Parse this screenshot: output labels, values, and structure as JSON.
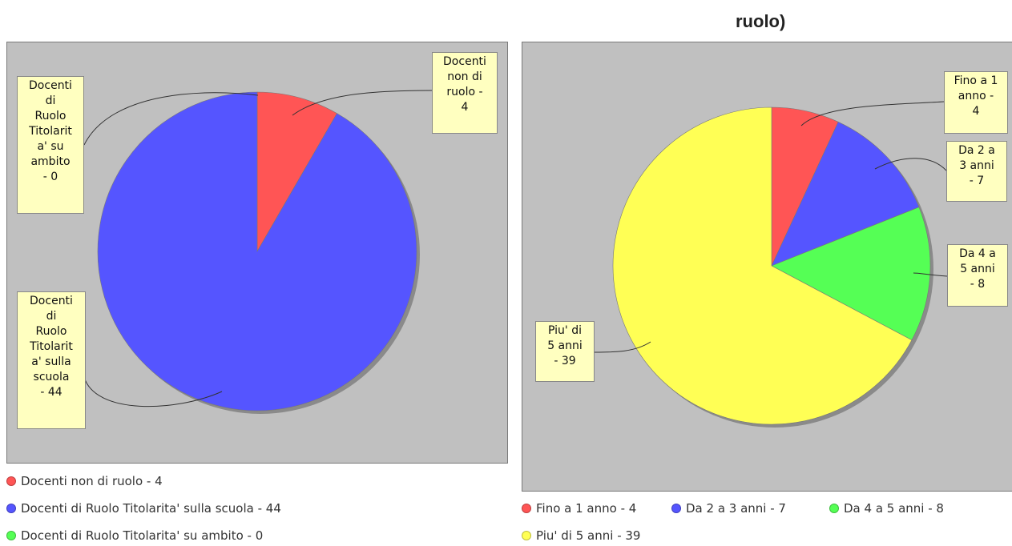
{
  "page": {
    "title": "ruolo)"
  },
  "chart_data": [
    {
      "type": "pie",
      "title": "",
      "series": [
        {
          "name": "Docenti non di ruolo",
          "value": 4,
          "color": "#ff5555",
          "callout": "Docenti\nnon di\nruolo -\n4",
          "legend": "Docenti non di ruolo - 4"
        },
        {
          "name": "Docenti di Ruolo Titolarita' sulla scuola",
          "value": 44,
          "color": "#5555ff",
          "callout": "Docenti\ndi\nRuolo\nTitolarit\na' sulla\nscuola\n- 44",
          "legend": "Docenti di Ruolo Titolarita' sulla scuola - 44"
        },
        {
          "name": "Docenti di Ruolo Titolarita' su ambito",
          "value": 0,
          "color": "#55ff55",
          "callout": "Docenti\ndi\nRuolo\nTitolarit\na' su\nambito\n- 0",
          "legend": "Docenti di Ruolo Titolarita' su ambito - 0"
        }
      ]
    },
    {
      "type": "pie",
      "title": "ruolo)",
      "series": [
        {
          "name": "Fino a 1 anno",
          "value": 4,
          "color": "#ff5555",
          "callout": "Fino a 1\nanno -\n4",
          "legend": "Fino a 1 anno - 4"
        },
        {
          "name": "Da 2 a 3 anni",
          "value": 7,
          "color": "#5555ff",
          "callout": "Da 2 a\n3 anni\n- 7",
          "legend": "Da 2 a 3 anni - 7"
        },
        {
          "name": "Da 4 a 5 anni",
          "value": 8,
          "color": "#55ff55",
          "callout": "Da 4 a\n5 anni\n- 8",
          "legend": "Da 4 a 5 anni - 8"
        },
        {
          "name": "Piu' di 5 anni",
          "value": 39,
          "color": "#ffff55",
          "callout": "Piu' di\n5 anni\n- 39",
          "legend": "Piu' di 5 anni - 39"
        }
      ]
    }
  ]
}
